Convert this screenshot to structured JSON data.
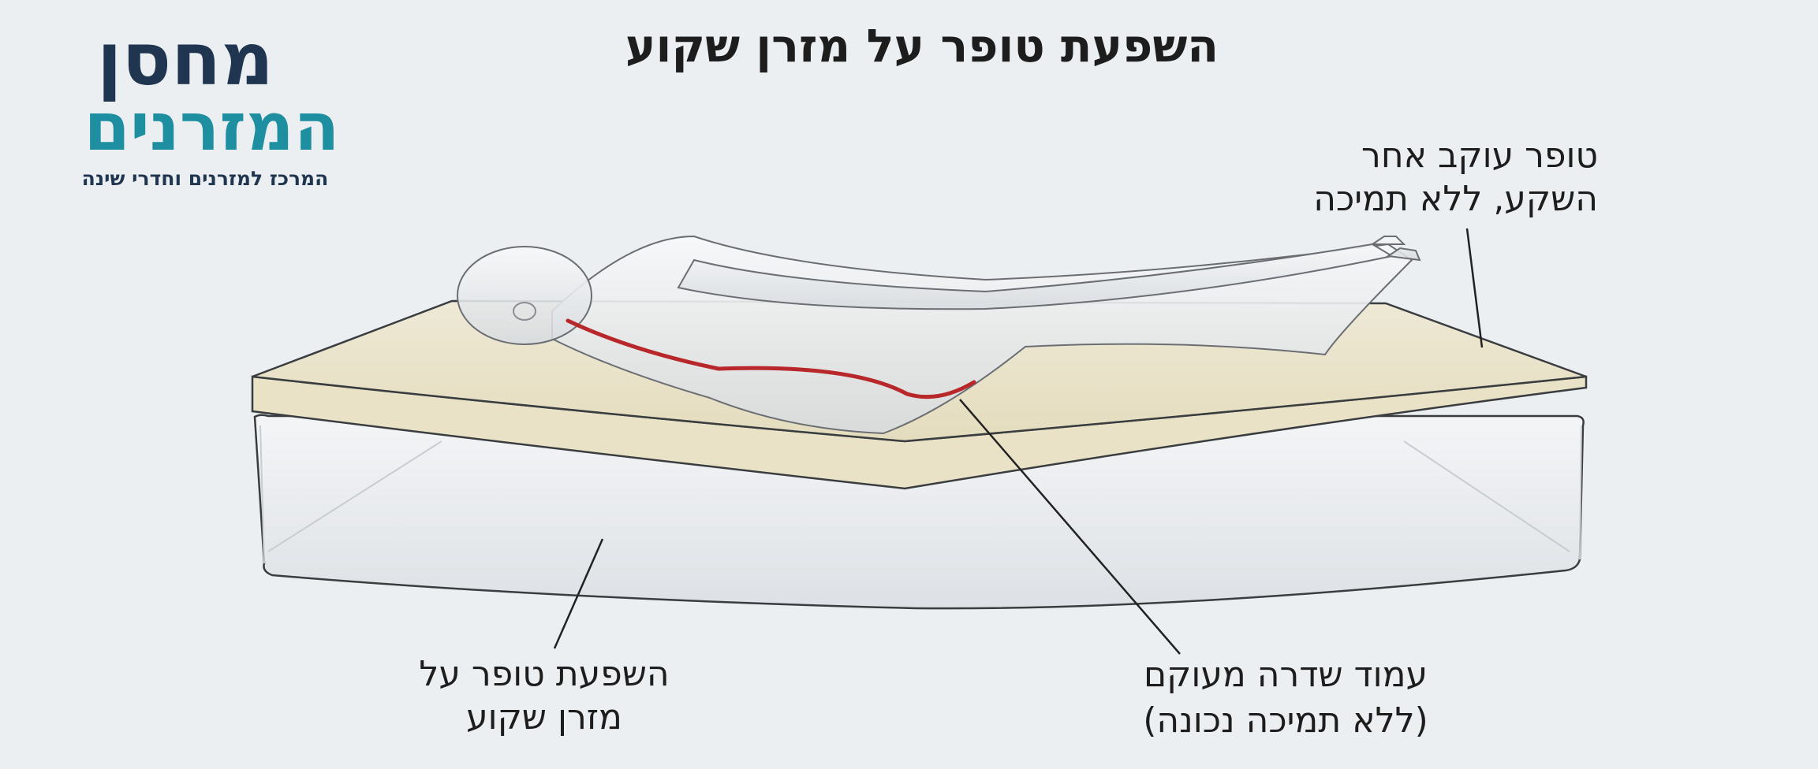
{
  "header": {
    "title": "השפעת טופר על מזרן שקוע"
  },
  "logo": {
    "name_top": "מחסן",
    "name_bottom": "המזרנים",
    "tagline": "המרכז למזרנים וחדרי שינה"
  },
  "labels": [
    {
      "lines": [
        "טופר עוקב אחר",
        "השקע, ללא תמיכה"
      ]
    },
    {
      "lines": [
        "השפעת טופר על",
        "מזרן שקוע"
      ]
    },
    {
      "lines": [
        "עמוד שדרה מעוקם",
        "(ללא תמיכה נכונה)"
      ]
    }
  ]
}
